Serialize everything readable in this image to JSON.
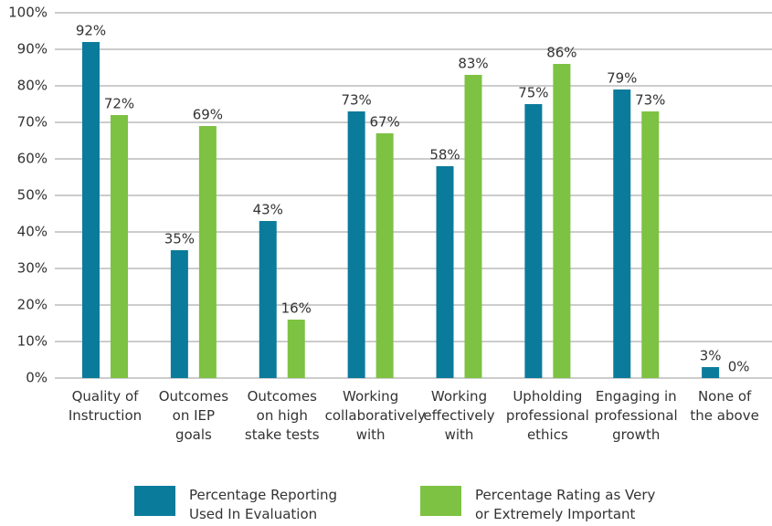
{
  "chart_data": {
    "type": "bar",
    "categories": [
      "Quality of\nInstruction",
      "Outcomes\non IEP\ngoals",
      "Outcomes\non high\nstake tests",
      "Working\ncollaboratively\nwith",
      "Working\neffectively\nwith",
      "Upholding\nprofessional\nethics",
      "Engaging in\nprofessional\ngrowth",
      "None of\nthe above"
    ],
    "series": [
      {
        "name": "Percentage Reporting\nUsed In Evaluation",
        "color": "#0b7b9b",
        "values": [
          92,
          35,
          43,
          73,
          58,
          75,
          79,
          3
        ],
        "value_labels": [
          "92%",
          "35%",
          "43%",
          "73%",
          "58%",
          "75%",
          "79%",
          "3%"
        ]
      },
      {
        "name": "Percentage Rating as Very\nor Extremely Important",
        "color": "#7dc242",
        "values": [
          72,
          69,
          16,
          67,
          83,
          86,
          73,
          0
        ],
        "value_labels": [
          "72%",
          "69%",
          "16%",
          "67%",
          "83%",
          "86%",
          "73%",
          "0%"
        ]
      }
    ],
    "ylim": [
      0,
      100
    ],
    "yticks": [
      {
        "value": 0,
        "label": "0%"
      },
      {
        "value": 10,
        "label": "10%"
      },
      {
        "value": 20,
        "label": "20%"
      },
      {
        "value": 30,
        "label": "30%"
      },
      {
        "value": 40,
        "label": "40%"
      },
      {
        "value": 50,
        "label": "50%"
      },
      {
        "value": 60,
        "label": "60%"
      },
      {
        "value": 70,
        "label": "70%"
      },
      {
        "value": 80,
        "label": "80%"
      },
      {
        "value": 90,
        "label": "90%"
      },
      {
        "value": 100,
        "label": "100%"
      }
    ],
    "grid": true
  }
}
